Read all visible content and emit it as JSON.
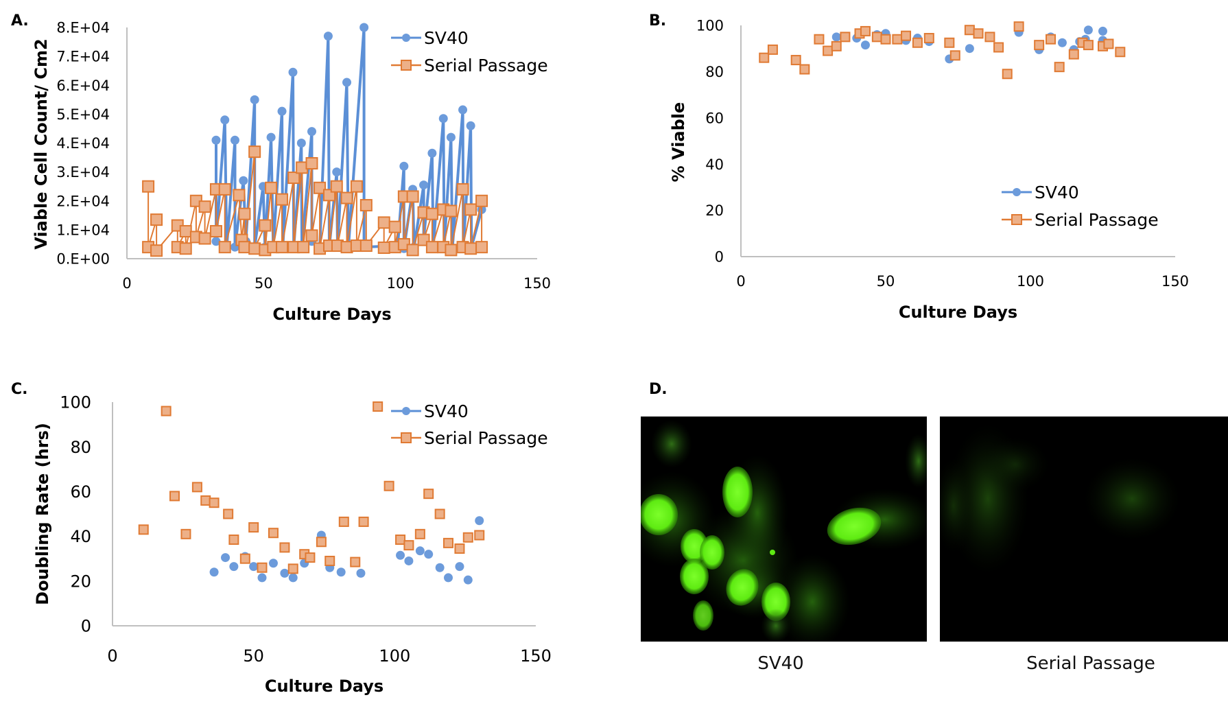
{
  "panels": {
    "A": {
      "letter": "A."
    },
    "B": {
      "letter": "B."
    },
    "C": {
      "letter": "C."
    },
    "D": {
      "letter": "D.",
      "images": [
        {
          "caption": "SV40",
          "description": "green immunofluorescence, bright nuclei"
        },
        {
          "caption": "Serial Passage",
          "description": "green immunofluorescence, dim"
        }
      ]
    }
  },
  "colors": {
    "sv40": "#5B8FD6",
    "sv40_fill": "#6C9BDB",
    "serial": "#E07A33",
    "serial_fill": "#EDB088",
    "axis": "#BFBFBF"
  },
  "chart_data": [
    {
      "id": "A",
      "type": "line",
      "title": "",
      "xlabel": "Culture Days",
      "ylabel": "Viable Cell Count/ Cm2",
      "xlim": [
        0,
        150
      ],
      "ylim": [
        0,
        80000
      ],
      "xticks": [
        "0",
        "50",
        "100",
        "150"
      ],
      "yticks": [
        "0.E+00",
        "1.E+04",
        "2.E+04",
        "3.E+04",
        "4.E+04",
        "5.E+04",
        "6.E+04",
        "7.E+04",
        "8.E+04"
      ],
      "ytick_values": [
        0,
        10000,
        20000,
        30000,
        40000,
        50000,
        60000,
        70000,
        80000
      ],
      "xtick_values": [
        0,
        50,
        100,
        150
      ],
      "legend": {
        "position": "top-right",
        "entries": [
          "SV40",
          "Serial Passage"
        ]
      },
      "series": [
        {
          "name": "SV40",
          "marker": "circle",
          "points": [
            [
              32.6,
              41000
            ],
            [
              32.6,
              6000
            ],
            [
              35.8,
              48000
            ],
            [
              36.5,
              4000
            ],
            [
              39.5,
              41000
            ],
            [
              39.5,
              4000
            ],
            [
              42.6,
              27000
            ],
            [
              43.5,
              6000
            ],
            [
              46.7,
              55000
            ],
            [
              46.7,
              4000
            ],
            [
              49.8,
              25000
            ],
            [
              50.5,
              4000
            ],
            [
              52.7,
              42000
            ],
            [
              53.5,
              4000
            ],
            [
              56.7,
              51000
            ],
            [
              57.0,
              4000
            ],
            [
              60.7,
              64500
            ],
            [
              61.0,
              4000
            ],
            [
              63.8,
              40000
            ],
            [
              64.0,
              4000
            ],
            [
              67.6,
              44000
            ],
            [
              67.6,
              6000
            ],
            [
              70.5,
              4000
            ],
            [
              73.6,
              77000
            ],
            [
              74.0,
              4000
            ],
            [
              76.7,
              30000
            ],
            [
              77.0,
              4000
            ],
            [
              80.4,
              61000
            ],
            [
              81.0,
              4000
            ],
            [
              86.7,
              80000
            ],
            [
              86.7,
              4000
            ],
            [
              99.0,
              4500
            ],
            [
              101.3,
              32000
            ],
            [
              101.3,
              3500
            ],
            [
              104.5,
              24000
            ],
            [
              105.0,
              4000
            ],
            [
              108.5,
              25500
            ],
            [
              108.5,
              7000
            ],
            [
              111.6,
              36500
            ],
            [
              112.0,
              4000
            ],
            [
              115.7,
              48500
            ],
            [
              116.0,
              4000
            ],
            [
              118.5,
              42000
            ],
            [
              119.0,
              3500
            ],
            [
              122.8,
              51500
            ],
            [
              123.0,
              4000
            ],
            [
              125.7,
              46000
            ],
            [
              126.0,
              4000
            ],
            [
              129.7,
              17000
            ]
          ]
        },
        {
          "name": "Serial Passage",
          "marker": "square",
          "points": [
            [
              7.8,
              25000
            ],
            [
              7.8,
              4000
            ],
            [
              10.8,
              13500
            ],
            [
              10.8,
              2800
            ],
            [
              18.5,
              11500
            ],
            [
              18.5,
              4000
            ],
            [
              21.5,
              9500
            ],
            [
              21.5,
              3500
            ],
            [
              25.3,
              20000
            ],
            [
              25.3,
              7500
            ],
            [
              28.5,
              18000
            ],
            [
              28.5,
              7000
            ],
            [
              32.6,
              24000
            ],
            [
              32.6,
              9500
            ],
            [
              35.8,
              24000
            ],
            [
              35.8,
              4000
            ],
            [
              41.0,
              22000
            ],
            [
              42.0,
              6500
            ],
            [
              43.0,
              15500
            ],
            [
              43.0,
              4000
            ],
            [
              46.7,
              37000
            ],
            [
              46.7,
              3500
            ],
            [
              50.5,
              11500
            ],
            [
              50.5,
              3000
            ],
            [
              52.7,
              24500
            ],
            [
              53.5,
              4000
            ],
            [
              56.7,
              20500
            ],
            [
              56.7,
              4000
            ],
            [
              61.0,
              28000
            ],
            [
              61.0,
              4000
            ],
            [
              64.0,
              31500
            ],
            [
              64.5,
              4000
            ],
            [
              67.6,
              33000
            ],
            [
              67.6,
              8000
            ],
            [
              70.5,
              24500
            ],
            [
              70.5,
              3500
            ],
            [
              74.0,
              22000
            ],
            [
              74.0,
              4500
            ],
            [
              76.7,
              25000
            ],
            [
              77.0,
              4500
            ],
            [
              80.4,
              21000
            ],
            [
              80.4,
              4000
            ],
            [
              84.0,
              25000
            ],
            [
              84.0,
              4500
            ],
            [
              87.5,
              18500
            ],
            [
              87.5,
              4500
            ],
            [
              94.0,
              12500
            ],
            [
              94.0,
              3800
            ],
            [
              98.0,
              11000
            ],
            [
              98.0,
              4000
            ],
            [
              101.3,
              21500
            ],
            [
              101.3,
              5000
            ],
            [
              104.5,
              21500
            ],
            [
              104.5,
              3000
            ],
            [
              108.5,
              16000
            ],
            [
              108.5,
              6500
            ],
            [
              111.6,
              15500
            ],
            [
              111.6,
              4000
            ],
            [
              115.7,
              17000
            ],
            [
              115.7,
              4000
            ],
            [
              118.5,
              16500
            ],
            [
              118.5,
              3000
            ],
            [
              122.8,
              24000
            ],
            [
              122.8,
              4000
            ],
            [
              125.7,
              17000
            ],
            [
              125.7,
              3500
            ],
            [
              129.7,
              20000
            ],
            [
              129.7,
              4000
            ]
          ]
        }
      ]
    },
    {
      "id": "B",
      "type": "scatter",
      "title": "",
      "xlabel": "Culture Days",
      "ylabel": "% Viable",
      "xlim": [
        0,
        150
      ],
      "ylim": [
        0,
        100
      ],
      "xticks": [
        "0",
        "50",
        "100",
        "150"
      ],
      "xtick_values": [
        0,
        50,
        100,
        150
      ],
      "yticks": [
        "0",
        "20",
        "40",
        "60",
        "80",
        "100"
      ],
      "ytick_values": [
        0,
        20,
        40,
        60,
        80,
        100
      ],
      "legend": {
        "position": "lower-right",
        "entries": [
          "SV40",
          "Serial Passage"
        ]
      },
      "series": [
        {
          "name": "SV40",
          "marker": "circle",
          "points": [
            [
              33,
              95
            ],
            [
              40,
              94.5
            ],
            [
              43,
              91.5
            ],
            [
              47,
              96
            ],
            [
              50,
              96.5
            ],
            [
              57,
              93.5
            ],
            [
              61,
              94.5
            ],
            [
              65,
              93
            ],
            [
              72,
              85.5
            ],
            [
              79,
              90
            ],
            [
              86,
              95
            ],
            [
              96,
              97
            ],
            [
              103,
              89.5
            ],
            [
              107,
              95
            ],
            [
              111,
              92.5
            ],
            [
              115,
              89.5
            ],
            [
              117,
              93
            ],
            [
              119,
              94
            ],
            [
              120,
              98
            ],
            [
              125,
              93.5
            ],
            [
              125,
              97.5
            ]
          ]
        },
        {
          "name": "Serial Passage",
          "marker": "square",
          "points": [
            [
              8,
              86
            ],
            [
              11,
              89.5
            ],
            [
              19,
              85
            ],
            [
              22,
              81
            ],
            [
              27,
              94
            ],
            [
              30,
              89
            ],
            [
              33,
              91
            ],
            [
              36,
              95
            ],
            [
              41,
              96.5
            ],
            [
              43,
              97.5
            ],
            [
              47,
              95
            ],
            [
              50,
              94
            ],
            [
              54,
              94
            ],
            [
              57,
              95.5
            ],
            [
              61,
              92.5
            ],
            [
              65,
              94.5
            ],
            [
              72,
              92.5
            ],
            [
              74,
              87
            ],
            [
              79,
              98
            ],
            [
              82,
              96.5
            ],
            [
              86,
              95
            ],
            [
              89,
              90.5
            ],
            [
              92,
              79
            ],
            [
              96,
              99.5
            ],
            [
              103,
              91.5
            ],
            [
              107,
              94
            ],
            [
              110,
              82
            ],
            [
              115,
              87.5
            ],
            [
              118,
              92.5
            ],
            [
              120,
              91.5
            ],
            [
              125,
              91
            ],
            [
              127,
              92
            ],
            [
              131,
              88.5
            ]
          ]
        }
      ]
    },
    {
      "id": "C",
      "type": "scatter",
      "title": "",
      "xlabel": "Culture Days",
      "ylabel": "Doubling Rate (hrs)",
      "xlim": [
        0,
        150
      ],
      "ylim": [
        0,
        100
      ],
      "xticks": [
        "0",
        "50",
        "100",
        "150"
      ],
      "xtick_values": [
        0,
        50,
        100,
        150
      ],
      "yticks": [
        "0",
        "20",
        "40",
        "60",
        "80",
        "100"
      ],
      "ytick_values": [
        0,
        20,
        40,
        60,
        80,
        100
      ],
      "legend": {
        "position": "top-right",
        "entries": [
          "SV40",
          "Serial Passage"
        ]
      },
      "series": [
        {
          "name": "SV40",
          "marker": "circle",
          "points": [
            [
              36,
              24
            ],
            [
              40,
              30.5
            ],
            [
              43,
              26.5
            ],
            [
              47,
              31
            ],
            [
              50,
              26.5
            ],
            [
              53,
              21.5
            ],
            [
              57,
              28
            ],
            [
              61,
              23.5
            ],
            [
              64,
              21.5
            ],
            [
              68,
              28
            ],
            [
              74,
              40.5
            ],
            [
              77,
              26
            ],
            [
              81,
              24
            ],
            [
              88,
              23.5
            ],
            [
              102,
              31.5
            ],
            [
              105,
              29
            ],
            [
              109,
              33.5
            ],
            [
              112,
              32
            ],
            [
              116,
              26
            ],
            [
              119,
              21.5
            ],
            [
              123,
              26.5
            ],
            [
              126,
              20.5
            ],
            [
              130,
              47
            ]
          ]
        },
        {
          "name": "Serial Passage",
          "marker": "square",
          "points": [
            [
              11,
              43
            ],
            [
              19,
              96
            ],
            [
              22,
              58
            ],
            [
              26,
              41
            ],
            [
              30,
              62
            ],
            [
              33,
              56
            ],
            [
              36,
              55
            ],
            [
              41,
              50
            ],
            [
              43,
              38.5
            ],
            [
              47,
              30
            ],
            [
              50,
              44
            ],
            [
              53,
              26
            ],
            [
              57,
              41.5
            ],
            [
              61,
              35
            ],
            [
              64,
              25.5
            ],
            [
              68,
              32
            ],
            [
              70,
              30.5
            ],
            [
              74,
              37.5
            ],
            [
              77,
              29
            ],
            [
              82,
              46.5
            ],
            [
              86,
              28.5
            ],
            [
              89,
              46.5
            ],
            [
              94,
              98
            ],
            [
              98,
              62.5
            ],
            [
              102,
              38.5
            ],
            [
              105,
              36
            ],
            [
              109,
              41
            ],
            [
              112,
              59
            ],
            [
              116,
              50
            ],
            [
              119,
              37
            ],
            [
              123,
              34.5
            ],
            [
              126,
              39.5
            ],
            [
              130,
              40.5
            ]
          ]
        }
      ]
    }
  ]
}
